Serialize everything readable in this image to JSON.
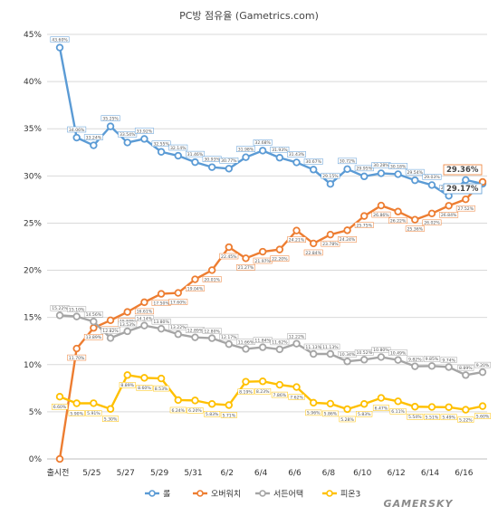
{
  "chart_data": {
    "type": "line",
    "title": "PC방 점유율 (Gametrics.com)",
    "xlabel": "",
    "ylabel": "",
    "ylim": [
      0,
      45
    ],
    "yticks": [
      "0%",
      "5%",
      "10%",
      "15%",
      "20%",
      "25%",
      "30%",
      "35%",
      "40%",
      "45%"
    ],
    "xtick_labels": [
      "출시전",
      "5/25",
      "5/27",
      "5/29",
      "5/31",
      "6/2",
      "6/4",
      "6/6",
      "6/8",
      "6/10",
      "6/12",
      "6/14",
      "6/16"
    ],
    "grid": true,
    "legend_position": "bottom",
    "series": [
      {
        "name": "롤",
        "color": "#5b9bd5",
        "values": [
          43.6,
          34.06,
          33.24,
          35.25,
          33.54,
          33.92,
          32.55,
          32.14,
          31.46,
          30.93,
          30.77,
          31.98,
          32.68,
          31.93,
          31.43,
          30.67,
          29.15,
          30.72,
          29.95,
          30.28,
          30.18,
          29.54,
          29.03,
          27.89,
          29.57,
          29.17
        ],
        "value_labels": [
          "43.60%",
          "34.06%",
          "33.24%",
          "35.25%",
          "33.54%",
          "33.92%",
          "32.55%",
          "32.14%",
          "31.46%",
          "30.93%",
          "30.77%",
          "31.98%",
          "32.68%",
          "31.93%",
          "31.43%",
          "30.67%",
          "29.15%",
          "30.72%",
          "29.95%",
          "30.28%",
          "30.18%",
          "29.54%",
          "29.03%",
          "27.89%",
          "29.57%",
          ""
        ]
      },
      {
        "name": "오버워치",
        "color": "#ed7d31",
        "values": [
          0,
          11.7,
          13.89,
          14.7,
          15.58,
          16.61,
          17.5,
          17.6,
          19.04,
          20.01,
          22.45,
          21.27,
          21.97,
          22.2,
          24.21,
          22.84,
          23.78,
          24.24,
          25.75,
          26.86,
          26.22,
          25.36,
          26.02,
          26.84,
          27.52,
          29.36
        ],
        "value_labels": [
          "",
          "11.70%",
          "13.89%",
          "14.70%",
          "15.58%",
          "16.61%",
          "17.50%",
          "17.60%",
          "19.04%",
          "20.01%",
          "22.45%",
          "21.27%",
          "21.97%",
          "22.20%",
          "24.21%",
          "22.84%",
          "23.78%",
          "24.24%",
          "25.75%",
          "26.86%",
          "26.22%",
          "25.36%",
          "26.02%",
          "26.84%",
          "27.52%",
          ""
        ]
      },
      {
        "name": "서든어택",
        "color": "#a5a5a5",
        "values": [
          15.22,
          15.1,
          14.56,
          12.82,
          13.53,
          14.14,
          13.8,
          13.22,
          12.89,
          12.8,
          12.17,
          11.66,
          11.84,
          11.62,
          12.22,
          11.13,
          11.13,
          10.34,
          10.52,
          10.8,
          10.49,
          9.82,
          9.85,
          9.74,
          8.89,
          9.2
        ],
        "value_labels": [
          "15.22%",
          "15.10%",
          "14.56%",
          "12.82%",
          "13.53%",
          "14.14%",
          "13.80%",
          "13.22%",
          "12.89%",
          "12.80%",
          "12.17%",
          "11.66%",
          "11.84%",
          "11.62%",
          "12.22%",
          "11.13%",
          "11.13%",
          "10.34%",
          "10.52%",
          "10.80%",
          "10.49%",
          "9.82%",
          "9.85%",
          "9.74%",
          "8.89%",
          "9.20%"
        ]
      },
      {
        "name": "피온3",
        "color": "#ffc000",
        "values": [
          6.6,
          5.9,
          5.91,
          5.3,
          8.89,
          8.6,
          8.53,
          6.24,
          6.2,
          5.83,
          5.71,
          8.19,
          8.23,
          7.86,
          7.62,
          5.96,
          5.86,
          5.28,
          5.83,
          6.47,
          6.11,
          5.54,
          5.51,
          5.49,
          5.22,
          5.6
        ],
        "value_labels": [
          "6.60%",
          "5.90%",
          "5.91%",
          "5.30%",
          "8.89%",
          "8.60%",
          "8.53%",
          "6.24%",
          "6.20%",
          "5.83%",
          "5.71%",
          "8.19%",
          "8.23%",
          "7.86%",
          "7.62%",
          "5.96%",
          "5.86%",
          "5.28%",
          "5.83%",
          "6.47%",
          "6.11%",
          "5.54%",
          "5.51%",
          "5.49%",
          "5.22%",
          "5.60%"
        ]
      }
    ],
    "end_labels": [
      {
        "series": "오버워치",
        "text": "29.36%",
        "color": "#ed7d31"
      },
      {
        "series": "롤",
        "text": "29.17%",
        "color": "#5b9bd5"
      }
    ]
  },
  "watermark": "GAMERSKY"
}
